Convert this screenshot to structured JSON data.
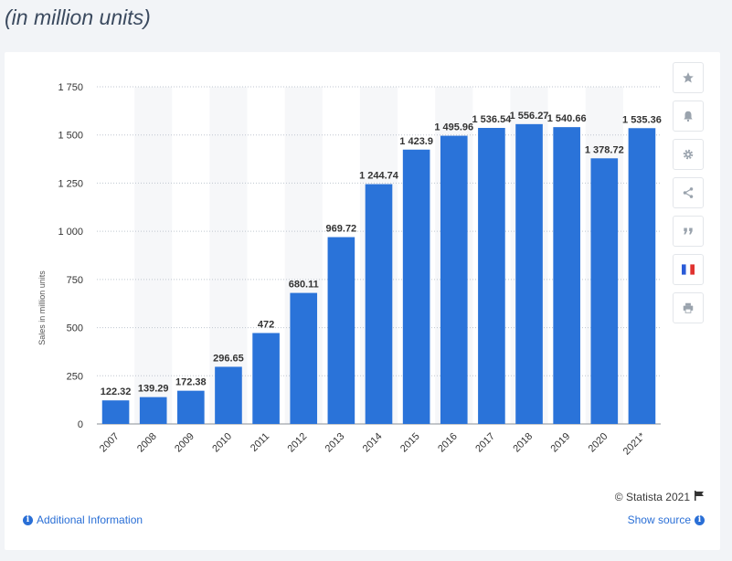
{
  "page": {
    "heading": "(in million units)"
  },
  "toolbar": {
    "buttons": [
      {
        "name": "favorite",
        "icon": "star-icon"
      },
      {
        "name": "notification",
        "icon": "bell-icon"
      },
      {
        "name": "settings",
        "icon": "gear-icon"
      },
      {
        "name": "share",
        "icon": "share-icon"
      },
      {
        "name": "cite",
        "icon": "quote-icon"
      },
      {
        "name": "language",
        "icon": "french-flag-icon"
      },
      {
        "name": "print",
        "icon": "printer-icon"
      }
    ]
  },
  "footer": {
    "copyright": "© Statista 2021",
    "additional_info": "Additional Information",
    "show_source": "Show source"
  },
  "colors": {
    "bar": "#2a73d9",
    "band": "#f6f7f9",
    "grid": "#bfc6cf",
    "link": "#2a6fd6"
  },
  "chart_data": {
    "type": "bar",
    "categories": [
      "2007",
      "2008",
      "2009",
      "2010",
      "2011",
      "2012",
      "2013",
      "2014",
      "2015",
      "2016",
      "2017",
      "2018",
      "2019",
      "2020",
      "2021*"
    ],
    "values": [
      122.32,
      139.29,
      172.38,
      296.65,
      472,
      680.11,
      969.72,
      1244.74,
      1423.9,
      1495.96,
      1536.54,
      1556.27,
      1540.66,
      1378.72,
      1535.36
    ],
    "value_labels": [
      "122.32",
      "139.29",
      "172.38",
      "296.65",
      "472",
      "680.11",
      "969.72",
      "1 244.74",
      "1 423.9",
      "1 495.96",
      "1 536.54",
      "1 556.27",
      "1 540.66",
      "1 378.72",
      "1 535.36"
    ],
    "yticks": [
      0,
      250,
      500,
      750,
      1000,
      1250,
      1500,
      1750
    ],
    "ytick_labels": [
      "0",
      "250",
      "500",
      "750",
      "1 000",
      "1 250",
      "1 500",
      "1 750"
    ],
    "ylabel": "Sales in million units",
    "xlabel": "",
    "ylim": [
      0,
      1750
    ],
    "grid": true
  }
}
